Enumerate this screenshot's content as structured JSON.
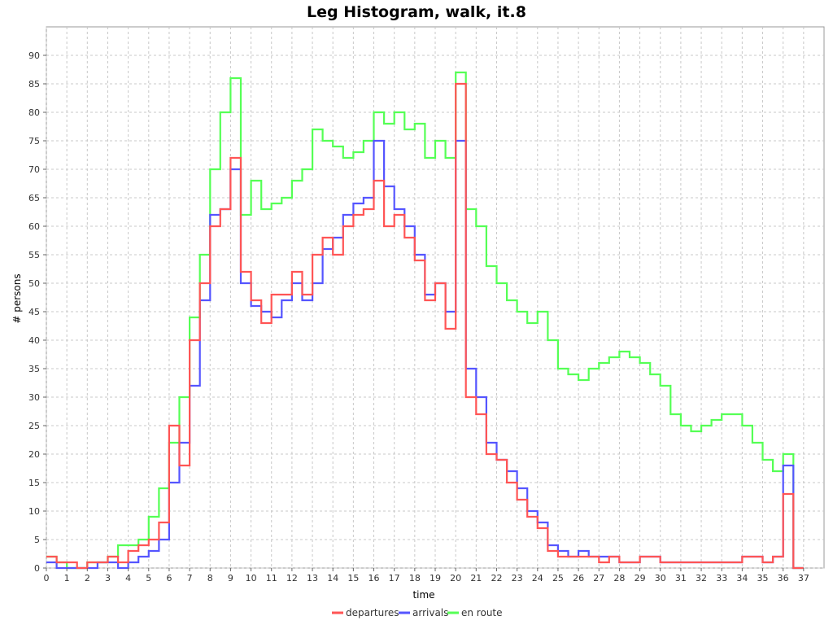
{
  "chart_data": {
    "type": "line",
    "title": "Leg Histogram, walk, it.8",
    "xlabel": "time",
    "ylabel": "# persons",
    "xlim": [
      0,
      38
    ],
    "ylim": [
      0,
      95
    ],
    "x_ticks": [
      0,
      1,
      2,
      3,
      4,
      5,
      6,
      7,
      8,
      9,
      10,
      11,
      12,
      13,
      14,
      15,
      16,
      17,
      18,
      19,
      20,
      21,
      22,
      23,
      24,
      25,
      26,
      27,
      28,
      29,
      30,
      31,
      32,
      33,
      34,
      35,
      36,
      37
    ],
    "y_ticks": [
      0,
      5,
      10,
      15,
      20,
      25,
      30,
      35,
      40,
      45,
      50,
      55,
      60,
      65,
      70,
      75,
      80,
      85,
      90
    ],
    "grid": true,
    "legend_position": "bottom",
    "step": true,
    "x": [
      0,
      0.5,
      1,
      1.5,
      2,
      2.5,
      3,
      3.5,
      4,
      4.5,
      5,
      5.5,
      6,
      6.5,
      7,
      7.5,
      8,
      8.5,
      9,
      9.5,
      10,
      10.5,
      11,
      11.5,
      12,
      12.5,
      13,
      13.5,
      14,
      14.5,
      15,
      15.5,
      16,
      16.5,
      17,
      17.5,
      18,
      18.5,
      19,
      19.5,
      20,
      20.5,
      21,
      21.5,
      22,
      22.5,
      23,
      23.5,
      24,
      24.5,
      25,
      25.5,
      26,
      26.5,
      27,
      27.5,
      28,
      28.5,
      29,
      29.5,
      30,
      30.5,
      31,
      31.5,
      32,
      32.5,
      33,
      33.5,
      34,
      34.5,
      35,
      35.5,
      36,
      36.5
    ],
    "series": [
      {
        "name": "departures",
        "color": "#ff5555",
        "values": [
          2,
          1,
          1,
          0,
          1,
          1,
          2,
          1,
          3,
          4,
          5,
          8,
          25,
          18,
          40,
          50,
          60,
          63,
          72,
          52,
          47,
          43,
          48,
          48,
          52,
          48,
          55,
          58,
          55,
          60,
          62,
          63,
          68,
          60,
          62,
          58,
          54,
          47,
          50,
          42,
          85,
          30,
          27,
          20,
          19,
          15,
          12,
          9,
          7,
          3,
          2,
          2,
          2,
          2,
          1,
          2,
          1,
          1,
          2,
          2,
          1,
          1,
          1,
          1,
          1,
          1,
          1,
          1,
          2,
          2,
          1,
          2,
          13,
          0
        ]
      },
      {
        "name": "arrivals",
        "color": "#5555ff",
        "values": [
          1,
          0,
          0,
          0,
          0,
          1,
          1,
          0,
          1,
          2,
          3,
          5,
          15,
          22,
          32,
          47,
          62,
          63,
          70,
          50,
          46,
          45,
          44,
          47,
          50,
          47,
          50,
          56,
          58,
          62,
          64,
          65,
          75,
          67,
          63,
          60,
          55,
          48,
          50,
          45,
          75,
          35,
          30,
          22,
          19,
          17,
          14,
          10,
          8,
          4,
          3,
          2,
          3,
          2,
          2,
          2,
          1,
          1,
          2,
          2,
          1,
          1,
          1,
          1,
          1,
          1,
          1,
          1,
          2,
          2,
          1,
          2,
          18,
          0
        ]
      },
      {
        "name": "en route",
        "color": "#55ff55",
        "values": [
          2,
          1,
          0,
          0,
          1,
          1,
          2,
          4,
          4,
          5,
          9,
          14,
          22,
          30,
          44,
          55,
          70,
          80,
          86,
          62,
          68,
          63,
          64,
          65,
          68,
          70,
          77,
          75,
          74,
          72,
          73,
          75,
          80,
          78,
          80,
          77,
          78,
          72,
          75,
          72,
          87,
          63,
          60,
          53,
          50,
          47,
          45,
          43,
          45,
          40,
          35,
          34,
          33,
          35,
          36,
          37,
          38,
          37,
          36,
          34,
          32,
          27,
          25,
          24,
          25,
          26,
          27,
          27,
          25,
          22,
          19,
          17,
          20,
          0
        ]
      }
    ]
  }
}
